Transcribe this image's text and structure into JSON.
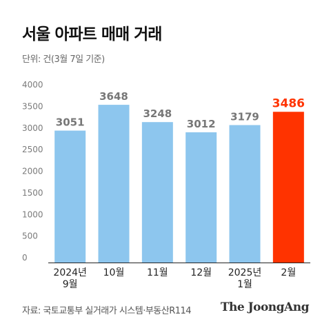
{
  "header": {
    "title": "서울 아파트 매매 거래",
    "unit": "단위: 건(3월 7일 기준)"
  },
  "footer": {
    "source": "자료: 국토교통부 실거래가 시스템·부동산R114",
    "brand": "The JoongAng"
  },
  "colors": {
    "bar": "#8dc6ee",
    "highlight": "#ff3300",
    "value_label": "#777777",
    "axis_label": "#7a7a7a",
    "category_label": "#222222"
  },
  "chart_data": {
    "type": "bar",
    "categories": [
      [
        "2024년",
        "9월"
      ],
      [
        "10월"
      ],
      [
        "11월"
      ],
      [
        "12월"
      ],
      [
        "2025년",
        "1월"
      ],
      [
        "2월"
      ]
    ],
    "values": [
      3051,
      3648,
      3248,
      3012,
      3179,
      3486
    ],
    "value_labels": [
      "3051",
      "3648",
      "3248",
      "3012",
      "3179",
      "3486"
    ],
    "highlight_index": 5,
    "ylim": [
      0,
      4000
    ],
    "yticks": [
      "0",
      "500",
      "1000",
      "1500",
      "2000",
      "2500",
      "3000",
      "3500",
      "4000"
    ],
    "grid": false
  }
}
